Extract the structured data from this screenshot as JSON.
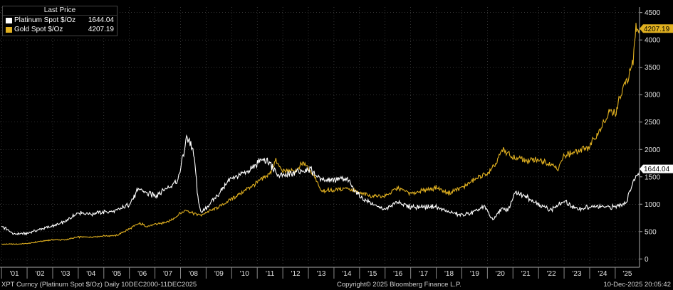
{
  "legend": {
    "header": "Last Price",
    "items": [
      {
        "label": "Platinum Spot $/Oz",
        "value": "1644.04",
        "color": "#ffffff"
      },
      {
        "label": "Gold Spot $/Oz",
        "value": "4207.19",
        "color": "#e0b020"
      }
    ]
  },
  "footer": {
    "left": "XPT Curncy (Platinum Spot $/Oz) Daily 10DEC2000-11DEC2025",
    "center": "Copyright© 2025 Bloomberg Finance L.P.",
    "right": "10-Dec-2025 20:05:42"
  },
  "colors": {
    "background": "#000000",
    "platinum": "#ffffff",
    "gold": "#e0b020",
    "grid": "#555555"
  },
  "chart_data": {
    "type": "line",
    "title": "",
    "xlabel": "",
    "ylabel": "",
    "x_range": [
      2000.94,
      2025.95
    ],
    "ylim": [
      -100,
      4600
    ],
    "yticks": [
      0,
      500,
      1000,
      1500,
      2000,
      2500,
      3000,
      3500,
      4000,
      4500
    ],
    "xtick_labels": [
      "'01",
      "'02",
      "'03",
      "'04",
      "'05",
      "'06",
      "'07",
      "'08",
      "'09",
      "'10",
      "'11",
      "'12",
      "'13",
      "'14",
      "'15",
      "'16",
      "'17",
      "'18",
      "'19",
      "'20",
      "'21",
      "'22",
      "'23",
      "'24",
      "'25"
    ],
    "grid": true,
    "legend_position": "top-left",
    "last_price_labels": [
      {
        "series": "Gold Spot $/Oz",
        "value": "4207.19"
      },
      {
        "series": "Platinum Spot $/Oz",
        "value": "1644.04"
      }
    ],
    "series": [
      {
        "name": "Platinum Spot $/Oz",
        "color": "#ffffff",
        "x": [
          2001.0,
          2001.5,
          2002.0,
          2002.5,
          2003.0,
          2003.5,
          2004.0,
          2004.5,
          2005.0,
          2005.5,
          2006.0,
          2006.4,
          2006.7,
          2007.0,
          2007.5,
          2007.9,
          2008.15,
          2008.25,
          2008.4,
          2008.55,
          2008.7,
          2008.85,
          2009.0,
          2009.5,
          2010.0,
          2010.5,
          2011.0,
          2011.2,
          2011.5,
          2011.75,
          2012.0,
          2012.3,
          2012.6,
          2013.0,
          2013.5,
          2014.0,
          2014.5,
          2015.0,
          2015.5,
          2016.0,
          2016.5,
          2017.0,
          2017.5,
          2018.0,
          2018.5,
          2019.0,
          2019.5,
          2019.9,
          2020.2,
          2020.5,
          2020.8,
          2021.1,
          2021.5,
          2022.0,
          2022.5,
          2023.0,
          2023.5,
          2024.0,
          2024.5,
          2025.0,
          2025.2,
          2025.45,
          2025.6,
          2025.8,
          2025.95
        ],
        "y": [
          600,
          450,
          470,
          540,
          600,
          680,
          850,
          820,
          860,
          880,
          1000,
          1300,
          1200,
          1150,
          1300,
          1450,
          2000,
          2250,
          2100,
          1800,
          1000,
          840,
          930,
          1200,
          1500,
          1550,
          1750,
          1800,
          1750,
          1550,
          1500,
          1550,
          1600,
          1650,
          1450,
          1450,
          1450,
          1150,
          1000,
          900,
          1050,
          950,
          950,
          950,
          850,
          800,
          850,
          960,
          700,
          900,
          900,
          1200,
          1150,
          1000,
          900,
          1050,
          900,
          950,
          950,
          950,
          1000,
          1050,
          1300,
          1500,
          1644.04
        ]
      },
      {
        "name": "Gold Spot $/Oz",
        "color": "#e0b020",
        "x": [
          2001.0,
          2001.5,
          2002.0,
          2002.5,
          2003.0,
          2003.5,
          2004.0,
          2004.5,
          2005.0,
          2005.5,
          2006.0,
          2006.4,
          2006.7,
          2007.0,
          2007.5,
          2007.9,
          2008.2,
          2008.7,
          2008.85,
          2009.0,
          2009.5,
          2010.0,
          2010.5,
          2011.0,
          2011.5,
          2011.7,
          2012.0,
          2012.5,
          2012.8,
          2013.0,
          2013.3,
          2013.5,
          2014.0,
          2014.5,
          2015.0,
          2015.5,
          2016.0,
          2016.5,
          2017.0,
          2017.5,
          2018.0,
          2018.5,
          2019.0,
          2019.5,
          2020.0,
          2020.3,
          2020.6,
          2021.0,
          2021.5,
          2022.0,
          2022.5,
          2022.8,
          2023.0,
          2023.5,
          2024.0,
          2024.3,
          2024.6,
          2024.8,
          2025.0,
          2025.3,
          2025.5,
          2025.7,
          2025.8,
          2025.95
        ],
        "y": [
          270,
          270,
          280,
          320,
          350,
          350,
          400,
          400,
          420,
          430,
          550,
          650,
          600,
          630,
          670,
          800,
          900,
          800,
          800,
          850,
          950,
          1100,
          1250,
          1400,
          1550,
          1800,
          1600,
          1600,
          1750,
          1650,
          1450,
          1250,
          1250,
          1300,
          1200,
          1150,
          1150,
          1300,
          1200,
          1250,
          1300,
          1200,
          1300,
          1450,
          1550,
          1700,
          2000,
          1850,
          1800,
          1800,
          1750,
          1650,
          1900,
          1950,
          2050,
          2300,
          2500,
          2700,
          2650,
          3100,
          3350,
          3600,
          4250,
          4207.19
        ]
      }
    ]
  }
}
